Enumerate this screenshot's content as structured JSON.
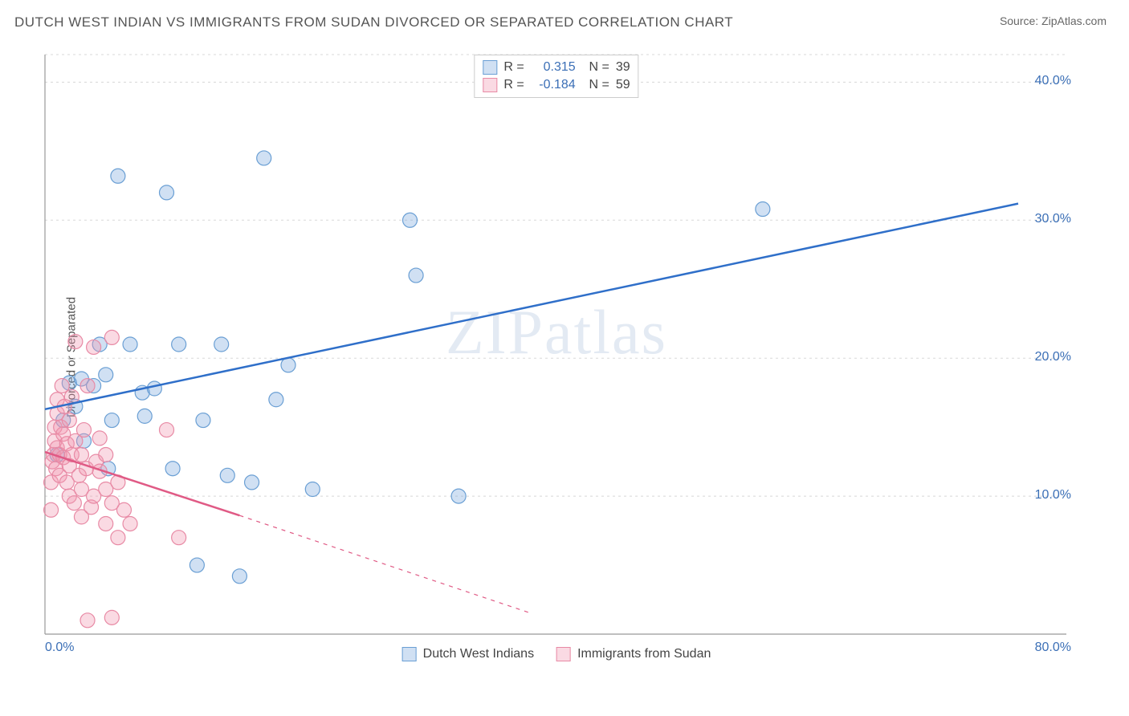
{
  "header": {
    "title": "DUTCH WEST INDIAN VS IMMIGRANTS FROM SUDAN DIVORCED OR SEPARATED CORRELATION CHART",
    "source": "Source: ZipAtlas.com"
  },
  "watermark": "ZIPatlas",
  "chart": {
    "type": "scatter",
    "y_axis_label": "Divorced or Separated",
    "xlim": [
      0,
      80
    ],
    "ylim": [
      0,
      42
    ],
    "x_ticks": [
      {
        "v": 0,
        "label": "0.0%"
      },
      {
        "v": 80,
        "label": "80.0%"
      }
    ],
    "y_ticks": [
      {
        "v": 10,
        "label": "10.0%"
      },
      {
        "v": 20,
        "label": "20.0%"
      },
      {
        "v": 30,
        "label": "30.0%"
      },
      {
        "v": 40,
        "label": "40.0%"
      }
    ],
    "grid_color": "#d8d8d8",
    "axis_color": "#999999",
    "background_color": "#ffffff",
    "marker_radius": 9,
    "marker_stroke_width": 1.2,
    "trend_line_width": 2.5,
    "series": [
      {
        "name": "Dutch West Indians",
        "fill_color": "rgba(120,165,220,0.35)",
        "stroke_color": "#6a9fd4",
        "trend_color": "#2f6fc9",
        "r_value": "0.315",
        "n_value": "39",
        "trend": {
          "x1": 0,
          "y1": 16.3,
          "x2": 80,
          "y2": 31.2,
          "dash": "none"
        },
        "points": [
          [
            1,
            13
          ],
          [
            1.5,
            15.5
          ],
          [
            2,
            18.2
          ],
          [
            2.5,
            16.5
          ],
          [
            3,
            18.5
          ],
          [
            3.2,
            14
          ],
          [
            4,
            18
          ],
          [
            4.5,
            21
          ],
          [
            5,
            18.8
          ],
          [
            5.2,
            12
          ],
          [
            5.5,
            15.5
          ],
          [
            6,
            33.2
          ],
          [
            7,
            21
          ],
          [
            8,
            17.5
          ],
          [
            8.2,
            15.8
          ],
          [
            9,
            17.8
          ],
          [
            10,
            32
          ],
          [
            10.5,
            12
          ],
          [
            11,
            21
          ],
          [
            12.5,
            5
          ],
          [
            13,
            15.5
          ],
          [
            14.5,
            21
          ],
          [
            15,
            11.5
          ],
          [
            16,
            4.2
          ],
          [
            17,
            11
          ],
          [
            19,
            17
          ],
          [
            20,
            19.5
          ],
          [
            18,
            34.5
          ],
          [
            22,
            10.5
          ],
          [
            30,
            30
          ],
          [
            30.5,
            26
          ],
          [
            34,
            10
          ],
          [
            59,
            30.8
          ]
        ]
      },
      {
        "name": "Immigrants from Sudan",
        "fill_color": "rgba(240,150,175,0.35)",
        "stroke_color": "#e88aa5",
        "trend_color": "#e05a85",
        "r_value": "-0.184",
        "n_value": "59",
        "trend": {
          "x1": 0,
          "y1": 13.2,
          "x2": 16,
          "y2": 8.6,
          "dash": "none",
          "ext_x2": 40,
          "ext_y2": 1.5
        },
        "points": [
          [
            0.5,
            9
          ],
          [
            0.5,
            11
          ],
          [
            0.6,
            12.5
          ],
          [
            0.7,
            13
          ],
          [
            0.8,
            14
          ],
          [
            0.8,
            15
          ],
          [
            0.9,
            12
          ],
          [
            1,
            13.5
          ],
          [
            1,
            16
          ],
          [
            1,
            17
          ],
          [
            1.2,
            11.5
          ],
          [
            1.2,
            13
          ],
          [
            1.3,
            15
          ],
          [
            1.4,
            18
          ],
          [
            1.5,
            12.8
          ],
          [
            1.5,
            14.5
          ],
          [
            1.6,
            16.5
          ],
          [
            1.8,
            11
          ],
          [
            1.8,
            13.8
          ],
          [
            2,
            10
          ],
          [
            2,
            12.2
          ],
          [
            2,
            15.5
          ],
          [
            2.2,
            17.2
          ],
          [
            2.2,
            13
          ],
          [
            2.4,
            9.5
          ],
          [
            2.5,
            14
          ],
          [
            2.5,
            21.2
          ],
          [
            2.8,
            11.5
          ],
          [
            3,
            8.5
          ],
          [
            3,
            10.5
          ],
          [
            3,
            13
          ],
          [
            3.2,
            14.8
          ],
          [
            3.4,
            12
          ],
          [
            3.5,
            18
          ],
          [
            3.8,
            9.2
          ],
          [
            4,
            10
          ],
          [
            4,
            20.8
          ],
          [
            4.2,
            12.5
          ],
          [
            4.5,
            11.8
          ],
          [
            4.5,
            14.2
          ],
          [
            5,
            8
          ],
          [
            5,
            13
          ],
          [
            5,
            10.5
          ],
          [
            5.5,
            9.5
          ],
          [
            5.5,
            21.5
          ],
          [
            6,
            7
          ],
          [
            6,
            11
          ],
          [
            6.5,
            9
          ],
          [
            7,
            8
          ],
          [
            10,
            14.8
          ],
          [
            11,
            7
          ]
        ]
      }
    ],
    "low_points_sudan": [
      [
        3.5,
        1
      ],
      [
        5.5,
        1.2
      ]
    ]
  }
}
